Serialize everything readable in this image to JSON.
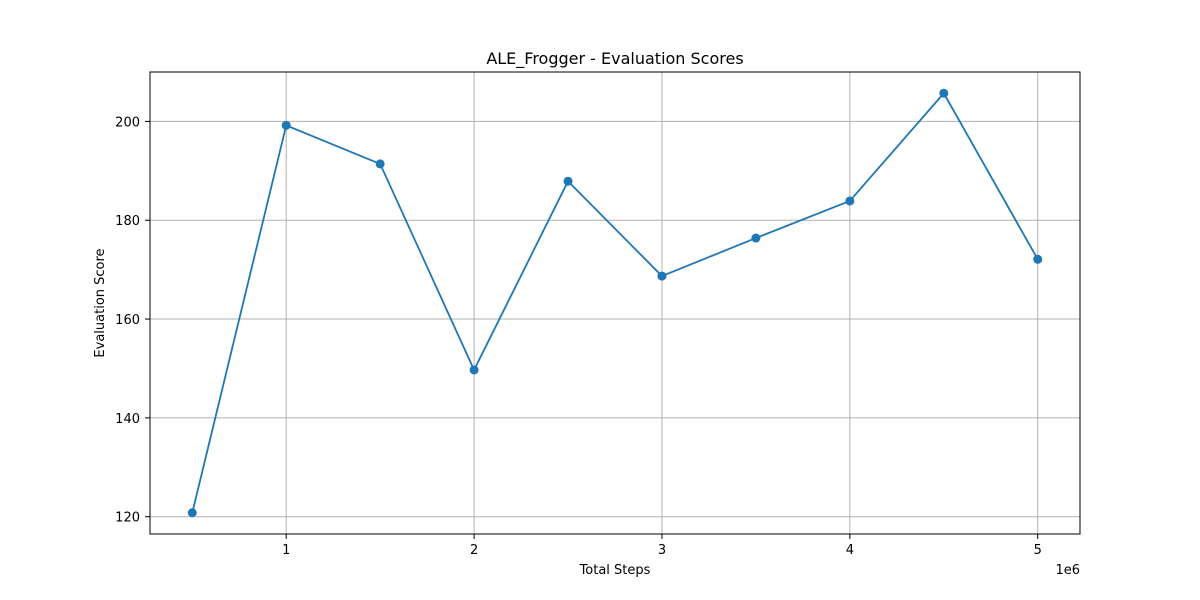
{
  "chart_data": {
    "type": "line",
    "title": "ALE_Frogger - Evaluation Scores",
    "xlabel": "Total Steps",
    "ylabel": "Evaluation Score",
    "x_offset_label": "1e6",
    "x_tick_values": [
      1000000,
      2000000,
      3000000,
      4000000,
      5000000
    ],
    "x_tick_labels": [
      "1",
      "2",
      "3",
      "4",
      "5"
    ],
    "y_tick_values": [
      120,
      140,
      160,
      180,
      200
    ],
    "y_tick_labels": [
      "120",
      "140",
      "160",
      "180",
      "200"
    ],
    "xlim": [
      275000,
      5225000
    ],
    "ylim": [
      116.5,
      210
    ],
    "grid": true,
    "legend": "none",
    "color": "#1f77b4",
    "series": [
      {
        "x": [
          500000,
          1000000,
          1500000,
          2000000,
          2500000,
          3000000,
          3500000,
          4000000,
          4500000,
          5000000
        ],
        "y": [
          120.8,
          199.2,
          191.4,
          149.7,
          187.9,
          168.7,
          176.4,
          183.9,
          205.7,
          172.1
        ]
      }
    ]
  }
}
